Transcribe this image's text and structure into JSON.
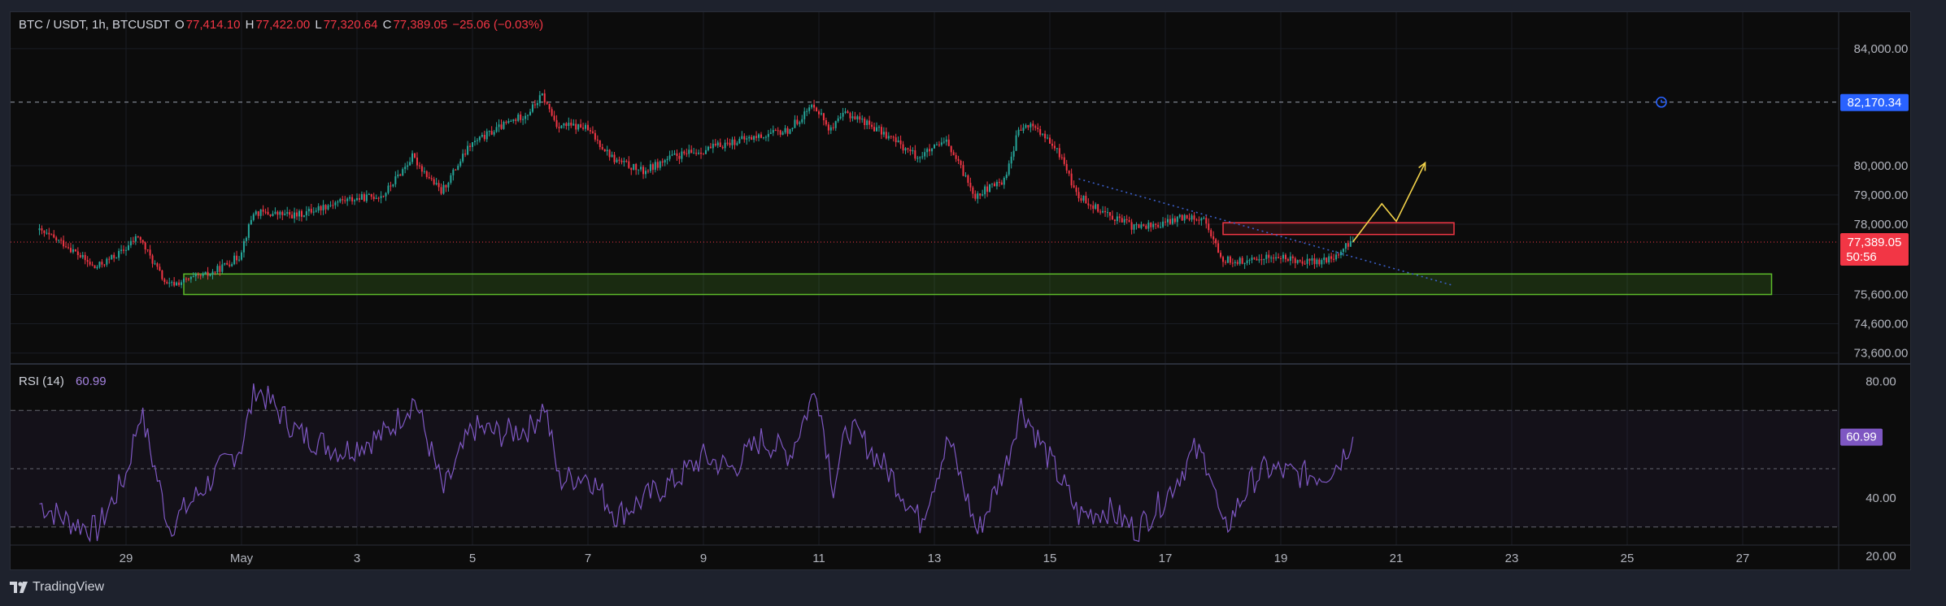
{
  "header": {
    "symbol": "BTC / USDT, 1h, BTCUSDT",
    "o_label": "O",
    "o_value": "77,414.10",
    "h_label": "H",
    "h_value": "77,422.00",
    "l_label": "L",
    "l_value": "77,320.64",
    "c_label": "C",
    "c_value": "77,389.05",
    "change": "−25.06 (−0.03%)"
  },
  "rsi_header": {
    "label": "RSI (14)",
    "value": "60.99"
  },
  "brand": "TradingView",
  "colors": {
    "up": "#26a69a",
    "down": "#f23645",
    "rsi_line": "#7e57c2",
    "support_zone": "#5dbb2a",
    "resistance_zone": "#f23645",
    "projection": "#f2d24a",
    "trendline": "#3b5fc9",
    "price_badge": "#f23645",
    "alert_badge": "#2962ff",
    "rsi_badge": "#7e57c2"
  },
  "chart_data": [
    {
      "type": "candlestick",
      "title": "BTC / USDT, 1h, BTCUSDT",
      "x_ticks": [
        "29",
        "May",
        "3",
        "5",
        "7",
        "9",
        "11",
        "13",
        "15",
        "17",
        "19",
        "21",
        "23",
        "25",
        "27"
      ],
      "y_ticks": [
        "84,000.00",
        "80,000.00",
        "79,000.00",
        "78,000.00",
        "75,600.00",
        "74,600.00",
        "73,600.00"
      ],
      "ylim": [
        73450,
        84800
      ],
      "price_series_approx": [
        [
          "Apr 27 12:00",
          77800
        ],
        [
          "Apr 28 00:00",
          77300
        ],
        [
          "Apr 28 12:00",
          76500
        ],
        [
          "Apr 29 00:00",
          77100
        ],
        [
          "Apr 29 06:00",
          77600
        ],
        [
          "Apr 29 18:00",
          75900
        ],
        [
          "Apr 30 12:00",
          76300
        ],
        [
          "May 1 00:00",
          76900
        ],
        [
          "May 1 06:00",
          78400
        ],
        [
          "May 2 00:00",
          78300
        ],
        [
          "May 2 18:00",
          78800
        ],
        [
          "May 3 12:00",
          79000
        ],
        [
          "May 4 00:00",
          80300
        ],
        [
          "May 4 12:00",
          79100
        ],
        [
          "May 5 00:00",
          80700
        ],
        [
          "May 5 12:00",
          81300
        ],
        [
          "May 6 00:00",
          81800
        ],
        [
          "May 6 06:00",
          82400
        ],
        [
          "May 6 12:00",
          81400
        ],
        [
          "May 7 00:00",
          81300
        ],
        [
          "May 7 12:00",
          80200
        ],
        [
          "May 8 00:00",
          79800
        ],
        [
          "May 8 12:00",
          80300
        ],
        [
          "May 9 00:00",
          80500
        ],
        [
          "May 9 12:00",
          80800
        ],
        [
          "May 10 00:00",
          81000
        ],
        [
          "May 10 12:00",
          81200
        ],
        [
          "May 10 23:00",
          82100
        ],
        [
          "May 11 06:00",
          81200
        ],
        [
          "May 11 12:00",
          81800
        ],
        [
          "May 11 18:00",
          81600
        ],
        [
          "May 12 06:00",
          81000
        ],
        [
          "May 12 18:00",
          80300
        ],
        [
          "May 13 06:00",
          80800
        ],
        [
          "May 13 18:00",
          79000
        ],
        [
          "May 14 06:00",
          79500
        ],
        [
          "May 14 12:00",
          81200
        ],
        [
          "May 14 18:00",
          81400
        ],
        [
          "May 15 06:00",
          80300
        ],
        [
          "May 15 12:00",
          79000
        ],
        [
          "May 16 00:00",
          78400
        ],
        [
          "May 16 12:00",
          77900
        ],
        [
          "May 17 00:00",
          78000
        ],
        [
          "May 17 06:00",
          78200
        ],
        [
          "May 17 12:00",
          78300
        ],
        [
          "May 17 18:00",
          78100
        ],
        [
          "May 18 00:00",
          76800
        ],
        [
          "May 18 12:00",
          76700
        ],
        [
          "May 18 18:00",
          76900
        ],
        [
          "May 19 06:00",
          76800
        ],
        [
          "May 19 18:00",
          76700
        ],
        [
          "May 20 00:00",
          76900
        ],
        [
          "May 20 06:00",
          77389
        ]
      ],
      "horizontal_line": {
        "price": 82170.34,
        "label": "82,170.34",
        "style": "dashed"
      },
      "last_price": {
        "price": 77389.05,
        "label": "77,389.05",
        "countdown": "50:56",
        "style": "dotted"
      },
      "zones": [
        {
          "name": "support",
          "from": 75600,
          "to": 76300,
          "start": "Apr 30",
          "end": "May 27 12:00"
        },
        {
          "name": "resistance",
          "from": 77650,
          "to": 78050,
          "start": "May 18",
          "end": "May 22"
        }
      ],
      "trendline": {
        "start": [
          "May 15 12:00",
          79550
        ],
        "end": [
          "May 22",
          75900
        ],
        "style": "dotted"
      },
      "projection_path": [
        [
          "May 20 06:00",
          77400
        ],
        [
          "May 20 18:00",
          78700
        ],
        [
          "May 21",
          78100
        ],
        [
          "May 21 12:00",
          80100
        ]
      ]
    },
    {
      "type": "line",
      "title": "RSI (14)",
      "y_ticks": [
        "80.00",
        "40.00",
        "20.00"
      ],
      "ylim": [
        16,
        84
      ],
      "bands": [
        70,
        50,
        30
      ],
      "last_value": 60.99,
      "series_approx": [
        [
          "Apr 27 12:00",
          38
        ],
        [
          "Apr 28 00:00",
          32
        ],
        [
          "Apr 28 12:00",
          29
        ],
        [
          "Apr 29 00:00",
          48
        ],
        [
          "Apr 29 06:00",
          70
        ],
        [
          "Apr 29 18:00",
          30
        ],
        [
          "Apr 30 12:00",
          47
        ],
        [
          "May 1 00:00",
          58
        ],
        [
          "May 1 06:00",
          78
        ],
        [
          "May 2 00:00",
          62
        ],
        [
          "May 2 18:00",
          56
        ],
        [
          "May 3 12:00",
          62
        ],
        [
          "May 4 00:00",
          74
        ],
        [
          "May 4 12:00",
          42
        ],
        [
          "May 5 00:00",
          64
        ],
        [
          "May 5 12:00",
          62
        ],
        [
          "May 6 00:00",
          64
        ],
        [
          "May 6 06:00",
          72
        ],
        [
          "May 6 12:00",
          46
        ],
        [
          "May 7 00:00",
          48
        ],
        [
          "May 7 12:00",
          34
        ],
        [
          "May 8 00:00",
          40
        ],
        [
          "May 8 12:00",
          46
        ],
        [
          "May 9 00:00",
          54
        ],
        [
          "May 9 12:00",
          50
        ],
        [
          "May 10 00:00",
          60
        ],
        [
          "May 10 12:00",
          55
        ],
        [
          "May 10 23:00",
          78
        ],
        [
          "May 11 06:00",
          44
        ],
        [
          "May 11 12:00",
          64
        ],
        [
          "May 11 18:00",
          60
        ],
        [
          "May 12 06:00",
          48
        ],
        [
          "May 12 18:00",
          32
        ],
        [
          "May 13 06:00",
          60
        ],
        [
          "May 13 18:00",
          28
        ],
        [
          "May 14 06:00",
          52
        ],
        [
          "May 14 12:00",
          72
        ],
        [
          "May 14 18:00",
          62
        ],
        [
          "May 15 06:00",
          44
        ],
        [
          "May 15 12:00",
          34
        ],
        [
          "May 16 00:00",
          36
        ],
        [
          "May 16 12:00",
          29
        ],
        [
          "May 17 00:00",
          40
        ],
        [
          "May 17 06:00",
          48
        ],
        [
          "May 17 12:00",
          56
        ],
        [
          "May 17 18:00",
          52
        ],
        [
          "May 18 00:00",
          28
        ],
        [
          "May 18 12:00",
          46
        ],
        [
          "May 18 18:00",
          50
        ],
        [
          "May 19 06:00",
          48
        ],
        [
          "May 19 18:00",
          48
        ],
        [
          "May 20 00:00",
          52
        ],
        [
          "May 20 06:00",
          60.99
        ]
      ]
    }
  ]
}
